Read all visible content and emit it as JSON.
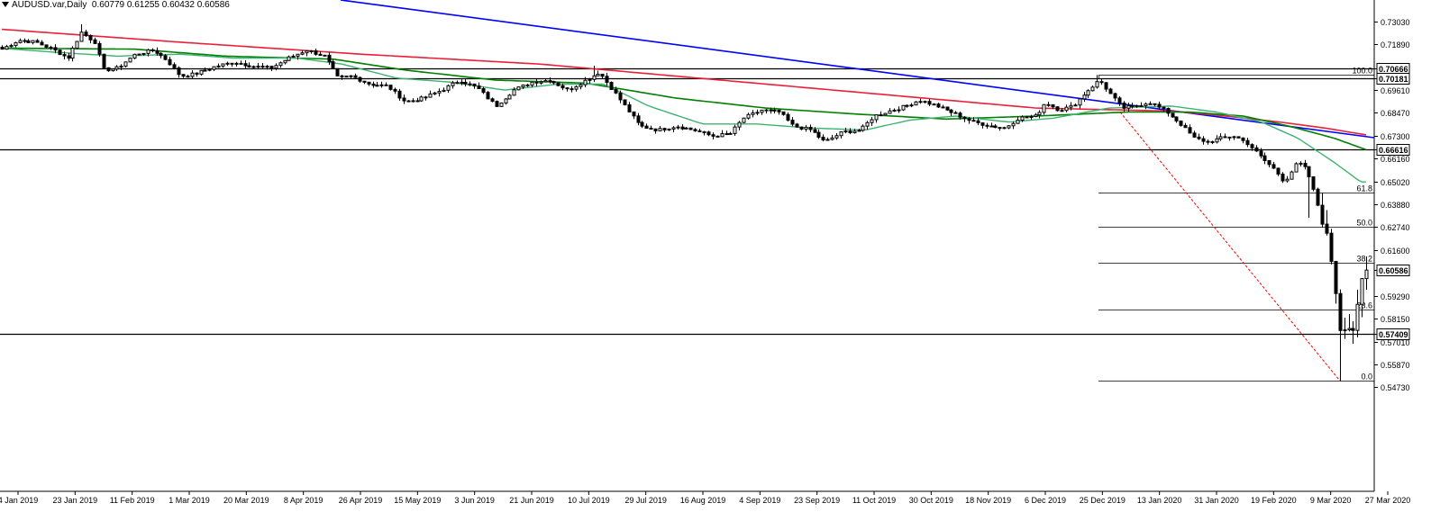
{
  "header": {
    "symbol": "AUDUSD.var,Daily",
    "ohlc": "0.60779 0.61255 0.60432 0.60586"
  },
  "chart_data": {
    "type": "candlestick",
    "y_range": [
      0.546,
      0.737
    ],
    "y_ticks": [
      "0.73030",
      "0.71890",
      "0.70666",
      "0.70181",
      "0.69610",
      "0.68470",
      "0.67300",
      "0.66616",
      "0.66160",
      "0.65020",
      "0.63880",
      "0.62740",
      "0.61600",
      "0.60586",
      "0.59290",
      "0.58150",
      "0.57409",
      "0.57010",
      "0.55870",
      "0.54730"
    ],
    "price_boxes": [
      "0.70666",
      "0.70181",
      "0.66616",
      "0.60586",
      "0.57409"
    ],
    "x_labels": [
      "4 Jan 2019",
      "23 Jan 2019",
      "11 Feb 2019",
      "1 Mar 2019",
      "20 Mar 2019",
      "8 Apr 2019",
      "26 Apr 2019",
      "15 May 2019",
      "3 Jun 2019",
      "21 Jun 2019",
      "10 Jul 2019",
      "29 Jul 2019",
      "16 Aug 2019",
      "4 Sep 2019",
      "23 Sep 2019",
      "11 Oct 2019",
      "30 Oct 2019",
      "18 Nov 2019",
      "6 Dec 2019",
      "25 Dec 2019",
      "13 Jan 2020",
      "31 Jan 2020",
      "19 Feb 2020",
      "9 Mar 2020",
      "27 Mar 2020"
    ],
    "horizontal_levels": [
      0.70666,
      0.70181,
      0.66616,
      0.57409
    ],
    "fibonacci": [
      {
        "label": "100.0",
        "price": 0.7036
      },
      {
        "label": "61.8",
        "price": 0.6445
      },
      {
        "label": "50.0",
        "price": 0.6274
      },
      {
        "label": "38.2",
        "price": 0.6094
      },
      {
        "label": "23.6",
        "price": 0.586
      },
      {
        "label": "0.0",
        "price": 0.5504
      }
    ],
    "trendline": {
      "from": [
        "4 Jan 2019",
        0.739
      ],
      "to": [
        "27 Mar 2020",
        0.684
      ]
    },
    "last_price": 0.60586,
    "colors": {
      "sma_short": "#3cb371",
      "sma_mid": "#008000",
      "sma_long": "#e8203a",
      "trendline": "#0000ff",
      "fib_diagonal": "#ff0000",
      "candle": "#000000"
    }
  }
}
